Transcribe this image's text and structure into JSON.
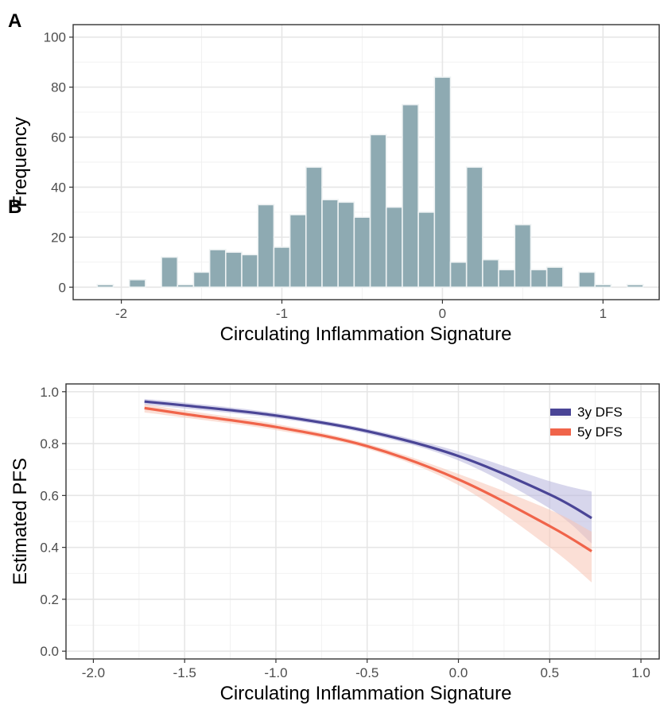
{
  "chart_data": [
    {
      "panel": "A",
      "type": "bar",
      "subtype": "histogram",
      "xlabel": "Circulating Inflammation Signature",
      "ylabel": "Frequency",
      "xlim": [
        -2.3,
        1.35
      ],
      "ylim": [
        -5,
        105
      ],
      "xticks": [
        -2,
        -1,
        0,
        1
      ],
      "xtick_labels": [
        "-2",
        "-1",
        "0",
        "1"
      ],
      "yticks": [
        0,
        20,
        40,
        60,
        80,
        100
      ],
      "ytick_labels": [
        "0",
        "20",
        "40",
        "60",
        "80",
        "100"
      ],
      "bin_width": 0.1,
      "bin_centers": [
        -2.1,
        -2.0,
        -1.9,
        -1.8,
        -1.7,
        -1.6,
        -1.5,
        -1.4,
        -1.3,
        -1.2,
        -1.1,
        -1.0,
        -0.9,
        -0.8,
        -0.7,
        -0.6,
        -0.5,
        -0.4,
        -0.3,
        -0.2,
        -0.1,
        0.0,
        0.1,
        0.2,
        0.3,
        0.4,
        0.5,
        0.6,
        0.7,
        0.8,
        0.9,
        1.0,
        1.1,
        1.2
      ],
      "values": [
        1,
        0,
        3,
        0,
        12,
        1,
        6,
        15,
        14,
        13,
        33,
        16,
        29,
        48,
        35,
        34,
        28,
        61,
        32,
        73,
        30,
        84,
        10,
        48,
        11,
        7,
        25,
        7,
        8,
        0,
        6,
        1,
        0,
        1
      ],
      "bar_color": "#8eaab2",
      "bar_edge_color": "#eef2f3",
      "grid": true
    },
    {
      "panel": "B",
      "type": "line",
      "xlabel": "Circulating Inflammation Signature",
      "ylabel": "Estimated PFS",
      "xlim": [
        -2.15,
        1.1
      ],
      "ylim": [
        -0.03,
        1.03
      ],
      "xticks": [
        -2.0,
        -1.5,
        -1.0,
        -0.5,
        0.0,
        0.5,
        1.0
      ],
      "xtick_labels": [
        "-2.0",
        "-1.5",
        "-1.0",
        "-0.5",
        "0.0",
        "0.5",
        "1.0"
      ],
      "yticks": [
        0.0,
        0.2,
        0.4,
        0.6,
        0.8,
        1.0
      ],
      "ytick_labels": [
        "0.0",
        "0.2",
        "0.4",
        "0.6",
        "0.8",
        "1.0"
      ],
      "legend_position": "top-right",
      "grid": true,
      "series": [
        {
          "name": "3y DFS",
          "color": "#4a4596",
          "band_color": "#b7b4dc",
          "x": [
            -1.72,
            -1.5,
            -1.0,
            -0.5,
            0.0,
            0.5,
            0.73
          ],
          "y": [
            0.962,
            0.947,
            0.908,
            0.848,
            0.752,
            0.604,
            0.513
          ],
          "lower": [
            0.95,
            0.935,
            0.898,
            0.838,
            0.735,
            0.55,
            0.415
          ],
          "upper": [
            0.972,
            0.958,
            0.918,
            0.857,
            0.77,
            0.655,
            0.615
          ]
        },
        {
          "name": "5y DFS",
          "color": "#f0644a",
          "band_color": "#f8c4b4",
          "x": [
            -1.72,
            -1.5,
            -1.0,
            -0.5,
            0.0,
            0.5,
            0.73
          ],
          "y": [
            0.937,
            0.914,
            0.864,
            0.79,
            0.662,
            0.482,
            0.385
          ],
          "lower": [
            0.92,
            0.9,
            0.852,
            0.78,
            0.64,
            0.4,
            0.265
          ],
          "upper": [
            0.952,
            0.928,
            0.876,
            0.8,
            0.683,
            0.545,
            0.46
          ]
        }
      ]
    }
  ]
}
